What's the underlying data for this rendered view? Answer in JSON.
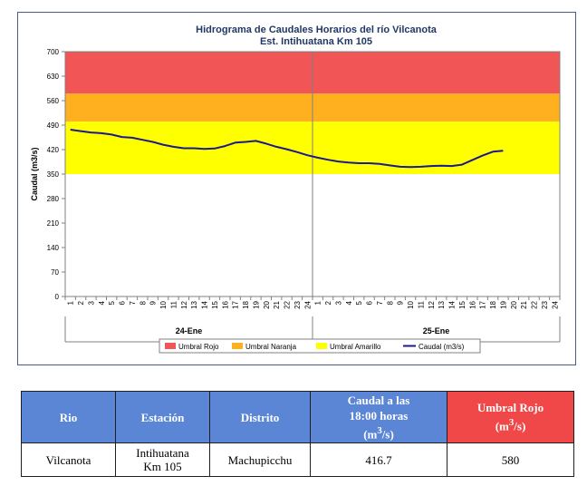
{
  "chart_data": {
    "type": "line",
    "title": "Hidrograma de Caudales Horarios del río Vilcanota",
    "subtitle": "Est. Intihuatana Km 105",
    "ylabel": "Caudal  (m3/s)",
    "ylim": [
      0,
      700
    ],
    "yticks": [
      0,
      70,
      140,
      210,
      280,
      350,
      420,
      490,
      560,
      630,
      700
    ],
    "xtick_labels": [
      "1",
      "2",
      "3",
      "4",
      "5",
      "6",
      "7",
      "8",
      "9",
      "10",
      "11",
      "12",
      "13",
      "14",
      "15",
      "16",
      "17",
      "18",
      "19",
      "20",
      "21",
      "22",
      "23",
      "24",
      "1",
      "2",
      "3",
      "4",
      "5",
      "6",
      "7",
      "8",
      "9",
      "10",
      "11",
      "12",
      "13",
      "14",
      "15",
      "16",
      "17",
      "18",
      "19",
      "20",
      "21",
      "22",
      "23",
      "24"
    ],
    "day_groups": [
      "24-Ene",
      "25-Ene"
    ],
    "bands": [
      {
        "name": "Umbral Rojo",
        "from": 580,
        "to": 700,
        "color": "#f25555"
      },
      {
        "name": "Umbral Naranja",
        "from": 500,
        "to": 580,
        "color": "#ffb01f"
      },
      {
        "name": "Umbral Amarillo",
        "from": 350,
        "to": 500,
        "color": "#ffff00"
      }
    ],
    "series": [
      {
        "name": "Caudal (m3/s)",
        "color": "#1a1a8c",
        "values": [
          477,
          473,
          469,
          467,
          463,
          456,
          454,
          448,
          442,
          434,
          428,
          424,
          424,
          422,
          423,
          430,
          440,
          442,
          445,
          437,
          428,
          421,
          413,
          404,
          397,
          391,
          386,
          383,
          381,
          381,
          379,
          375,
          371,
          370,
          371,
          373,
          374,
          373,
          377,
          390,
          403,
          414,
          417
        ]
      }
    ],
    "legend": [
      "Umbral Rojo",
      "Umbral Naranja",
      "Umbral Amarillo",
      "Caudal (m3/s)"
    ],
    "legend_position": "bottom"
  },
  "table": {
    "headers": [
      "Rio",
      "Estación",
      "Distrito",
      "Caudal a las 18:00 horas (m3/s)",
      "Umbral Rojo (m3/s)"
    ],
    "row": [
      "Vilcanota",
      "Intihuatana Km 105",
      "Machupicchu",
      "416.7",
      "580"
    ]
  }
}
